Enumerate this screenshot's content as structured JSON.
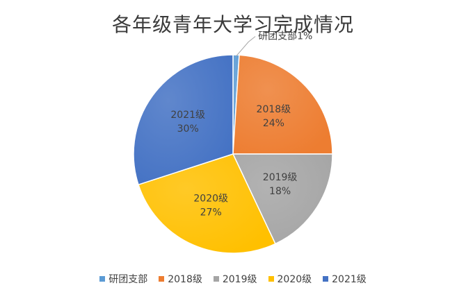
{
  "chart_data": {
    "type": "pie",
    "title": "各年级青年大学习完成情况",
    "categories": [
      "研团支部",
      "2018级",
      "2019级",
      "2020级",
      "2021级"
    ],
    "values": [
      1,
      24,
      18,
      27,
      30
    ],
    "labels": [
      "研团支部1%",
      "2018级\n24%",
      "2019级\n18%",
      "2020级\n27%",
      "2021级\n30%"
    ],
    "colors": [
      "#5b9bd5",
      "#ed7d31",
      "#a5a5a5",
      "#ffc000",
      "#4472c4"
    ],
    "legend_position": "bottom",
    "start_angle": "top, clockwise"
  }
}
